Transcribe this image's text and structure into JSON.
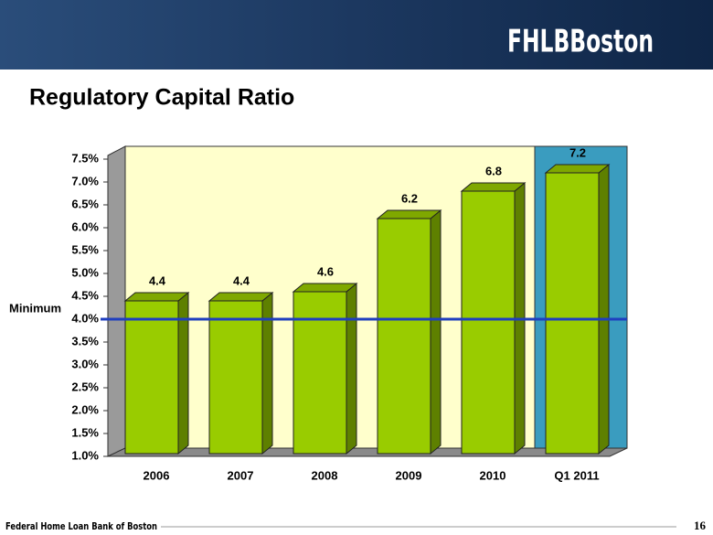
{
  "header": {
    "logo": "FHLBBoston"
  },
  "chart_data": {
    "type": "bar3d",
    "title": "Regulatory Capital Ratio",
    "categories": [
      "2006",
      "2007",
      "2008",
      "2009",
      "2010",
      "Q1 2011"
    ],
    "values": [
      4.4,
      4.4,
      4.6,
      6.2,
      6.8,
      7.2
    ],
    "color": "#99cc00",
    "ylim": [
      1,
      7.5
    ],
    "yticks": [
      {
        "value": 1,
        "label": "1.0%"
      },
      {
        "value": 1.5,
        "label": "1.5%"
      },
      {
        "value": 2,
        "label": "2.0%"
      },
      {
        "value": 2.5,
        "label": "2.5%"
      },
      {
        "value": 3,
        "label": "3.0%"
      },
      {
        "value": 3.5,
        "label": "3.5%"
      },
      {
        "value": 4,
        "label": "4.0%"
      },
      {
        "value": 4.5,
        "label": "4.5%"
      },
      {
        "value": 5,
        "label": "5.0%"
      },
      {
        "value": 5.5,
        "label": "5.5%"
      },
      {
        "value": 6,
        "label": "6.0%"
      },
      {
        "value": 6.5,
        "label": "6.5%"
      },
      {
        "value": 7,
        "label": "7.0%"
      },
      {
        "value": 7.5,
        "label": "7.5%"
      }
    ],
    "reference_line": {
      "value": 4,
      "label": "Minimum",
      "color": "#1f3fbf"
    }
  },
  "footer": {
    "text": "Federal Home Loan Bank of Boston",
    "page": "16"
  }
}
